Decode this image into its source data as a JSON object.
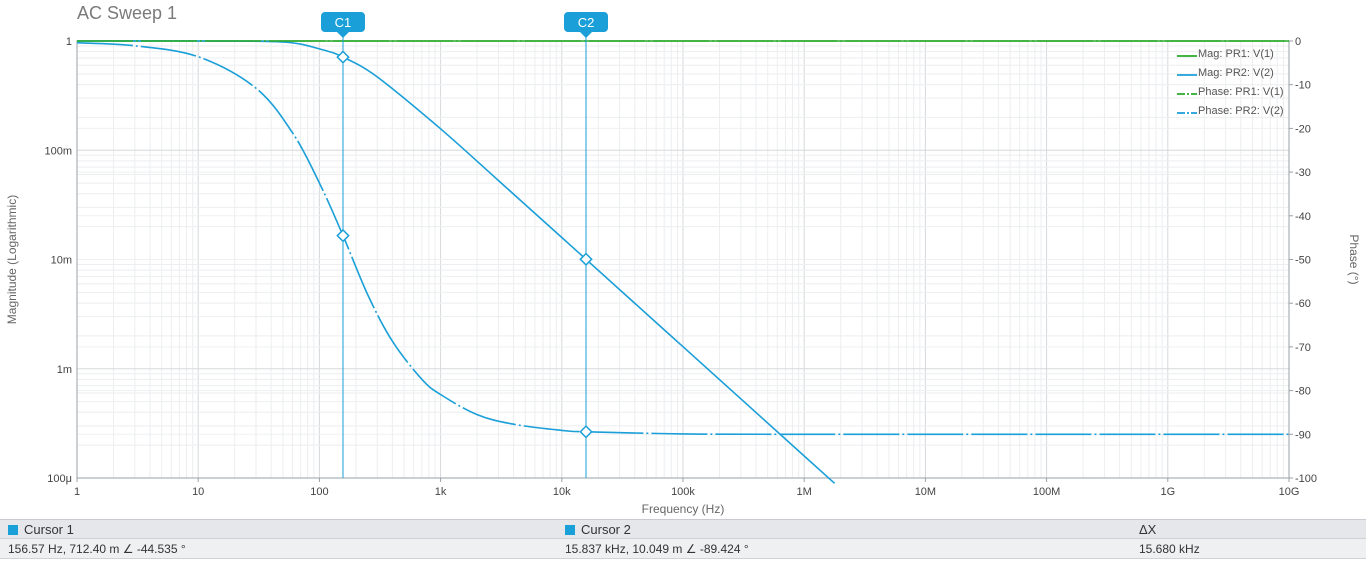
{
  "chart_data": {
    "type": "line",
    "title": "AC Sweep 1",
    "xlabel": "Frequency (Hz)",
    "ylabel": "Magnitude (Logarithmic)",
    "y2label": "Phase (°)",
    "x_scale": "log",
    "xlim": [
      1,
      10000000000
    ],
    "ylim": [
      0.0001,
      1
    ],
    "y2lim": [
      -100,
      0
    ],
    "x_tick_labels": [
      "1",
      "10",
      "100",
      "1k",
      "10k",
      "100k",
      "1M",
      "10M",
      "100M",
      "1G",
      "10G"
    ],
    "y_tick_labels": [
      "1",
      "100m",
      "10m",
      "1m",
      "100μ"
    ],
    "y2_tick_labels": [
      "0",
      "-10",
      "-20",
      "-30",
      "-40",
      "-50",
      "-60",
      "-70",
      "-80",
      "-90",
      "-100"
    ],
    "grid": true,
    "legend_position": "top-right",
    "series": [
      {
        "name": "Mag: PR1: V(1)",
        "color": "#2aaa2a",
        "style": "solid",
        "axis": "left",
        "x": [
          1,
          10000000000
        ],
        "y": [
          1,
          1
        ]
      },
      {
        "name": "Mag: PR2: V(2)",
        "color": "#1a9fd8",
        "style": "solid",
        "axis": "left",
        "x": [
          1,
          10,
          50,
          100,
          156.57,
          300,
          1000,
          3000,
          10000,
          15837,
          100000,
          1000000,
          1780000
        ],
        "y": [
          1,
          0.9998,
          0.98,
          0.846,
          0.7124,
          0.469,
          0.157,
          0.0529,
          0.0159,
          0.010049,
          0.00159,
          0.000159,
          8.94e-05
        ]
      },
      {
        "name": "Phase: PR1: V(1)",
        "color": "#2aaa2a",
        "style": "dashdot",
        "axis": "right",
        "x": [
          1,
          10000000000
        ],
        "y": [
          0,
          0
        ]
      },
      {
        "name": "Phase: PR2: V(2)",
        "color": "#1a9fd8",
        "style": "dashdot",
        "axis": "right",
        "x": [
          1,
          3,
          10,
          30,
          60,
          100,
          156.57,
          250,
          400,
          700,
          1000,
          2000,
          4000,
          10000,
          15837,
          100000,
          1000000,
          10000000000
        ],
        "y": [
          -0.4,
          -1.1,
          -3.6,
          -10.8,
          -21.0,
          -32.5,
          -44.535,
          -58.0,
          -68.7,
          -77.4,
          -80.9,
          -85.5,
          -87.7,
          -89.1,
          -89.424,
          -89.9,
          -90,
          -90
        ]
      }
    ],
    "cursors": [
      {
        "label": "C1",
        "x": 156.57,
        "mag": 0.7124,
        "phase": -44.535
      },
      {
        "label": "C2",
        "x": 15837,
        "mag": 0.010049,
        "phase": -89.424
      }
    ]
  },
  "cursor_table": {
    "cursor1_label": "Cursor 1",
    "cursor1_value": "156.57 Hz, 712.40 m  ∠ -44.535 °",
    "cursor2_label": "Cursor 2",
    "cursor2_value": "15.837 kHz, 10.049 m  ∠ -89.424 °",
    "delta_label": "ΔX",
    "delta_value": "15.680 kHz",
    "swatch_color": "#1aa0d8"
  }
}
